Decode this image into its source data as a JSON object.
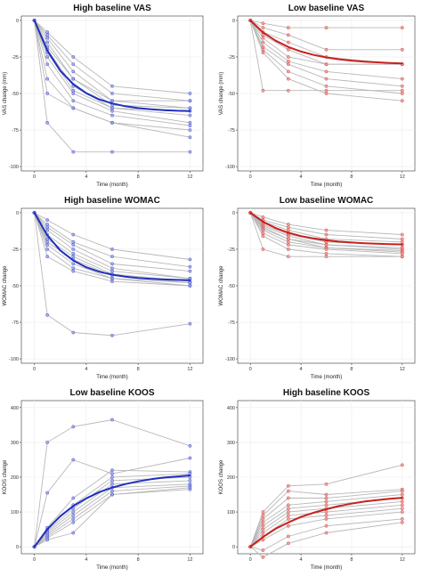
{
  "colors": {
    "blue": "#1f2fbf",
    "blue_pt": "#9aa2ea",
    "red": "#c8201c",
    "red_pt": "#ef9a97",
    "subject_line": "#b8b8b8"
  },
  "chart_data": [
    {
      "type": "line",
      "title": "High baseline VAS",
      "xlabel": "Time (month)",
      "ylabel": "VAS change (mm)",
      "xlim": [
        -1,
        13
      ],
      "ylim": [
        -103,
        3
      ],
      "xticks": [
        0,
        4,
        8,
        12
      ],
      "yticks": [
        0,
        -25,
        -50,
        -75,
        -100
      ],
      "color": "blue",
      "grid": true,
      "subject_x": [
        0,
        1,
        3,
        6,
        12
      ],
      "subjects": [
        [
          0,
          -8,
          -25,
          -45,
          -50
        ],
        [
          0,
          -10,
          -30,
          -50,
          -55
        ],
        [
          0,
          -12,
          -35,
          -55,
          -55
        ],
        [
          0,
          -15,
          -40,
          -55,
          -60
        ],
        [
          0,
          -18,
          -40,
          -58,
          -60
        ],
        [
          0,
          -20,
          -45,
          -60,
          -62
        ],
        [
          0,
          -22,
          -48,
          -60,
          -65
        ],
        [
          0,
          -25,
          -50,
          -62,
          -70
        ],
        [
          0,
          -30,
          -55,
          -65,
          -72
        ],
        [
          0,
          -40,
          -60,
          -70,
          -80
        ],
        [
          0,
          -50,
          -60,
          -70,
          -75
        ],
        [
          0,
          -70,
          -90,
          -90,
          -90
        ]
      ],
      "fit_curve": {
        "x": [
          0,
          1,
          2,
          3,
          4,
          5,
          6,
          7,
          8,
          9,
          10,
          11,
          12
        ],
        "y": [
          0,
          -20.5,
          -34.4,
          -43.6,
          -49.8,
          -54,
          -56.8,
          -58.7,
          -60,
          -60.8,
          -61.4,
          -61.8,
          -62
        ]
      }
    },
    {
      "type": "line",
      "title": "Low baseline VAS",
      "xlabel": "Time (month)",
      "ylabel": "VAS change (mm)",
      "xlim": [
        -1,
        13
      ],
      "ylim": [
        -103,
        3
      ],
      "xticks": [
        0,
        4,
        8,
        12
      ],
      "yticks": [
        0,
        -25,
        -50,
        -75,
        -100
      ],
      "color": "red",
      "grid": true,
      "subject_x": [
        0,
        1,
        3,
        6,
        12
      ],
      "subjects": [
        [
          0,
          -2,
          -5,
          -5,
          -5
        ],
        [
          0,
          -5,
          -10,
          -20,
          -20
        ],
        [
          0,
          -8,
          -15,
          -25,
          -30
        ],
        [
          0,
          -10,
          -20,
          -30,
          -30
        ],
        [
          0,
          -12,
          -25,
          -30,
          -30
        ],
        [
          0,
          -15,
          -28,
          -35,
          -40
        ],
        [
          0,
          -18,
          -30,
          -40,
          -45
        ],
        [
          0,
          -20,
          -35,
          -45,
          -50
        ],
        [
          0,
          -22,
          -40,
          -50,
          -55
        ],
        [
          0,
          -48,
          -48,
          -48,
          -48
        ]
      ],
      "fit_curve": {
        "x": [
          0,
          1,
          2,
          3,
          4,
          5,
          6,
          7,
          8,
          9,
          10,
          11,
          12
        ],
        "y": [
          0,
          -8.2,
          -13.9,
          -18.2,
          -21.3,
          -23.6,
          -25.3,
          -26.6,
          -27.5,
          -28.2,
          -28.7,
          -29.1,
          -29.4
        ]
      }
    },
    {
      "type": "line",
      "title": "High baseline WOMAC",
      "xlabel": "Time (month)",
      "ylabel": "WOMAC change",
      "xlim": [
        -1,
        13
      ],
      "ylim": [
        -103,
        3
      ],
      "xticks": [
        0,
        4,
        8,
        12
      ],
      "yticks": [
        0,
        -25,
        -50,
        -75,
        -100
      ],
      "color": "blue",
      "grid": true,
      "subject_x": [
        0,
        1,
        3,
        6,
        12
      ],
      "subjects": [
        [
          0,
          -5,
          -15,
          -25,
          -32
        ],
        [
          0,
          -8,
          -20,
          -30,
          -37
        ],
        [
          0,
          -10,
          -22,
          -35,
          -40
        ],
        [
          0,
          -12,
          -25,
          -38,
          -45
        ],
        [
          0,
          -15,
          -28,
          -40,
          -45
        ],
        [
          0,
          -18,
          -30,
          -42,
          -47
        ],
        [
          0,
          -20,
          -32,
          -43,
          -48
        ],
        [
          0,
          -22,
          -35,
          -45,
          -48
        ],
        [
          0,
          -25,
          -38,
          -45,
          -50
        ],
        [
          0,
          -30,
          -40,
          -47,
          -50
        ],
        [
          0,
          -70,
          -82,
          -84,
          -76
        ]
      ],
      "fit_curve": {
        "x": [
          0,
          1,
          2,
          3,
          4,
          5,
          6,
          7,
          8,
          9,
          10,
          11,
          12
        ],
        "y": [
          0,
          -15.5,
          -25.8,
          -32.7,
          -37.3,
          -40.4,
          -42.4,
          -43.8,
          -44.7,
          -45.3,
          -45.7,
          -46,
          -46.2
        ]
      }
    },
    {
      "type": "line",
      "title": "Low baseline WOMAC",
      "xlabel": "Time (month)",
      "ylabel": "WOMAC change",
      "xlim": [
        -1,
        13
      ],
      "ylim": [
        -103,
        3
      ],
      "xticks": [
        0,
        4,
        8,
        12
      ],
      "yticks": [
        0,
        -25,
        -50,
        -75,
        -100
      ],
      "color": "red",
      "grid": true,
      "subject_x": [
        0,
        1,
        3,
        6,
        12
      ],
      "subjects": [
        [
          0,
          -3,
          -8,
          -12,
          -15
        ],
        [
          0,
          -5,
          -10,
          -15,
          -18
        ],
        [
          0,
          -6,
          -12,
          -18,
          -20
        ],
        [
          0,
          -7,
          -14,
          -20,
          -22
        ],
        [
          0,
          -8,
          -15,
          -20,
          -22
        ],
        [
          0,
          -9,
          -16,
          -22,
          -24
        ],
        [
          0,
          -10,
          -18,
          -22,
          -25
        ],
        [
          0,
          -11,
          -18,
          -24,
          -26
        ],
        [
          0,
          -12,
          -20,
          -24,
          -27
        ],
        [
          0,
          -14,
          -22,
          -25,
          -28
        ],
        [
          0,
          -16,
          -25,
          -28,
          -30
        ],
        [
          0,
          -25,
          -30,
          -30,
          -30
        ]
      ],
      "fit_curve": {
        "x": [
          0,
          1,
          2,
          3,
          4,
          5,
          6,
          7,
          8,
          9,
          10,
          11,
          12
        ],
        "y": [
          0,
          -6.2,
          -10.5,
          -13.7,
          -16,
          -17.6,
          -18.9,
          -19.8,
          -20.4,
          -20.9,
          -21.2,
          -21.5,
          -21.7
        ]
      }
    },
    {
      "type": "line",
      "title": "Low baseline KOOS",
      "xlabel": "Time (month)",
      "ylabel": "KOOS change",
      "xlim": [
        -1,
        13
      ],
      "ylim": [
        -20,
        420
      ],
      "xticks": [
        0,
        4,
        8,
        12
      ],
      "yticks": [
        0,
        100,
        200,
        300,
        400
      ],
      "color": "blue",
      "grid": true,
      "subject_x": [
        0,
        1,
        3,
        6,
        12
      ],
      "subjects": [
        [
          0,
          300,
          345,
          365,
          290
        ],
        [
          0,
          155,
          250,
          210,
          255
        ],
        [
          0,
          55,
          140,
          220,
          215
        ],
        [
          0,
          50,
          120,
          200,
          210
        ],
        [
          0,
          45,
          110,
          190,
          200
        ],
        [
          0,
          40,
          100,
          180,
          190
        ],
        [
          0,
          35,
          90,
          170,
          180
        ],
        [
          0,
          30,
          80,
          160,
          175
        ],
        [
          0,
          25,
          70,
          150,
          170
        ],
        [
          0,
          20,
          40,
          150,
          165
        ]
      ],
      "fit_curve": {
        "x": [
          0,
          1,
          2,
          3,
          4,
          5,
          6,
          7,
          8,
          9,
          10,
          11,
          12
        ],
        "y": [
          0,
          50,
          88,
          117,
          139,
          157,
          170,
          180,
          188,
          194,
          199,
          202,
          205
        ]
      }
    },
    {
      "type": "line",
      "title": "High baseline KOOS",
      "xlabel": "Time (month)",
      "ylabel": "KOOS change",
      "xlim": [
        -1,
        13
      ],
      "ylim": [
        -20,
        420
      ],
      "xticks": [
        0,
        4,
        8,
        12
      ],
      "yticks": [
        0,
        100,
        200,
        300,
        400
      ],
      "color": "red",
      "grid": true,
      "subject_x": [
        0,
        1,
        3,
        6,
        12
      ],
      "subjects": [
        [
          0,
          100,
          175,
          180,
          235
        ],
        [
          0,
          90,
          160,
          150,
          165
        ],
        [
          0,
          80,
          140,
          140,
          160
        ],
        [
          0,
          70,
          120,
          130,
          150
        ],
        [
          0,
          60,
          110,
          120,
          140
        ],
        [
          0,
          50,
          100,
          110,
          130
        ],
        [
          0,
          40,
          90,
          100,
          120
        ],
        [
          0,
          30,
          80,
          90,
          110
        ],
        [
          0,
          20,
          60,
          80,
          100
        ],
        [
          0,
          -10,
          30,
          60,
          80
        ],
        [
          0,
          -30,
          10,
          40,
          70
        ]
      ],
      "fit_curve": {
        "x": [
          0,
          1,
          2,
          3,
          4,
          5,
          6,
          7,
          8,
          9,
          10,
          11,
          12
        ],
        "y": [
          0,
          28,
          52,
          70,
          86,
          98,
          108,
          117,
          124,
          130,
          134,
          138,
          141
        ]
      }
    }
  ]
}
